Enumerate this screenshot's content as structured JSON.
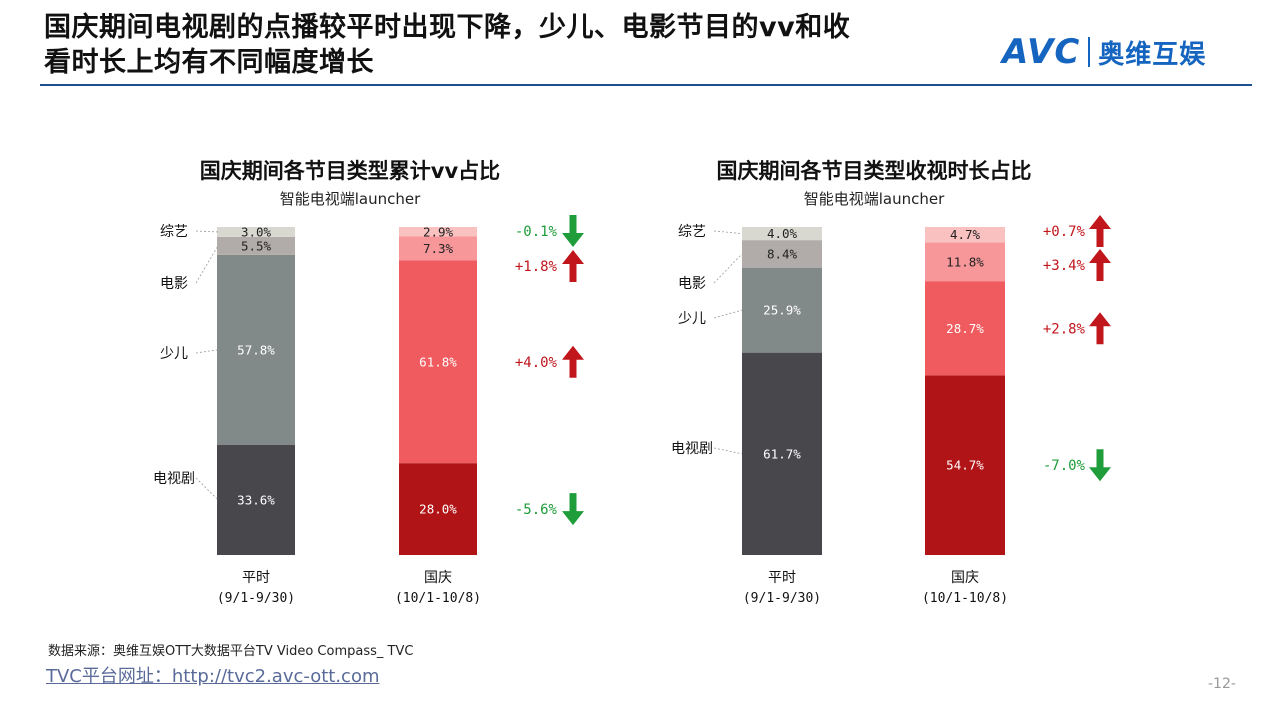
{
  "header": {
    "title_line1": "国庆期间电视剧的点播较平时出现下降，少儿、电影节目的vv和收",
    "title_line2": "看时长上均有不同幅度增长",
    "logo_avc": "AVC",
    "logo_cn": "奥维互娱"
  },
  "colors": {
    "gray_bars": [
      "#48474c",
      "#828a89",
      "#b1aca9",
      "#d8d8d0"
    ],
    "red_bars": [
      "#b01417",
      "#ef5b5e",
      "#f7979a",
      "#f9c2c0"
    ],
    "up_arrow": "#c0161c",
    "down_arrow": "#1f9d3a",
    "change_up_text": "#c0161c",
    "change_down_text": "#1f9d3a"
  },
  "chart_data": [
    {
      "type": "bar",
      "stacked": true,
      "title": "国庆期间各节目类型累计vv占比",
      "subtitle": "智能电视端launcher",
      "categories": [
        "平时",
        "国庆"
      ],
      "category_periods": [
        "(9/1-9/30)",
        "(10/1-10/8)"
      ],
      "ylim": [
        0,
        100
      ],
      "series": [
        {
          "name": "电视剧",
          "values": [
            33.6,
            28.0
          ],
          "labels": [
            "33.6%",
            "28.0%"
          ]
        },
        {
          "name": "少儿",
          "values": [
            57.8,
            61.8
          ],
          "labels": [
            "57.8%",
            "61.8%"
          ]
        },
        {
          "name": "电影",
          "values": [
            5.5,
            7.3
          ],
          "labels": [
            "5.5%",
            "7.3%"
          ]
        },
        {
          "name": "综艺",
          "values": [
            3.0,
            2.9
          ],
          "labels": [
            "3.0%",
            "2.9%"
          ]
        }
      ],
      "changes": [
        {
          "series": "电视剧",
          "text": "-5.6%",
          "dir": "down"
        },
        {
          "series": "少儿",
          "text": "+4.0%",
          "dir": "up"
        },
        {
          "series": "电影",
          "text": "+1.8%",
          "dir": "up"
        },
        {
          "series": "综艺",
          "text": "-0.1%",
          "dir": "down"
        }
      ]
    },
    {
      "type": "bar",
      "stacked": true,
      "title": "国庆期间各节目类型收视时长占比",
      "subtitle": "智能电视端launcher",
      "categories": [
        "平时",
        "国庆"
      ],
      "category_periods": [
        "(9/1-9/30)",
        "(10/1-10/8)"
      ],
      "ylim": [
        0,
        100
      ],
      "series": [
        {
          "name": "电视剧",
          "values": [
            61.7,
            54.7
          ],
          "labels": [
            "61.7%",
            "54.7%"
          ]
        },
        {
          "name": "少儿",
          "values": [
            25.9,
            28.7
          ],
          "labels": [
            "25.9%",
            "28.7%"
          ]
        },
        {
          "name": "电影",
          "values": [
            8.4,
            11.8
          ],
          "labels": [
            "8.4%",
            "11.8%"
          ]
        },
        {
          "name": "综艺",
          "values": [
            4.0,
            4.7
          ],
          "labels": [
            "4.0%",
            "4.7%"
          ]
        }
      ],
      "changes": [
        {
          "series": "电视剧",
          "text": "-7.0%",
          "dir": "down"
        },
        {
          "series": "少儿",
          "text": "+2.8%",
          "dir": "up"
        },
        {
          "series": "电影",
          "text": "+3.4%",
          "dir": "up"
        },
        {
          "series": "综艺",
          "text": "+0.7%",
          "dir": "up"
        }
      ]
    }
  ],
  "footer": {
    "source": "数据来源：奥维互娱OTT大数据平台TV Video Compass_ TVC",
    "url": "TVC平台网址：http://tvc2.avc-ott.com",
    "page": "-12-"
  }
}
